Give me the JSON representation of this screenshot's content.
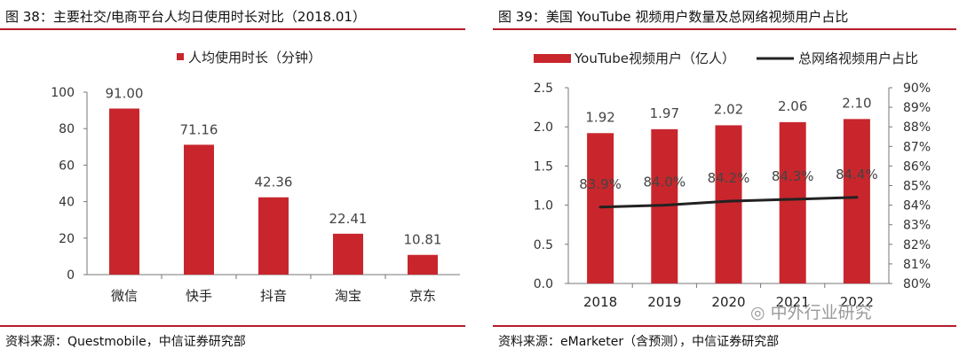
{
  "colors": {
    "bar": "#c8262c",
    "line": "#222222",
    "rule": "#b51d2a"
  },
  "left": {
    "title": "图 38：主要社交/电商平台人均日使用时长对比（2018.01）",
    "source": "资料来源：Questmobile，中信证券研究部",
    "chart_data": {
      "type": "bar",
      "categories": [
        "微信",
        "快手",
        "抖音",
        "淘宝",
        "京东"
      ],
      "series": [
        {
          "name": "人均使用时长（分钟）",
          "values": [
            91.0,
            71.16,
            42.36,
            22.41,
            10.81
          ]
        }
      ],
      "value_labels": [
        "91.00",
        "71.16",
        "42.36",
        "22.41",
        "10.81"
      ],
      "yticks": [
        "0",
        "20",
        "40",
        "60",
        "80",
        "100"
      ],
      "ylim": [
        0,
        100
      ],
      "legend": "top-center"
    }
  },
  "right": {
    "title": "图 39：美国 YouTube 视频用户数量及总网络视频用户占比",
    "source": "资料来源：eMarketer（含预测），中信证券研究部",
    "chart_data": {
      "type": "bar+line",
      "categories": [
        "2018",
        "2019",
        "2020",
        "2021",
        "2022"
      ],
      "series": [
        {
          "name": "YouTube视频用户（亿人）",
          "type": "bar",
          "axis": "left",
          "values": [
            1.92,
            1.97,
            2.02,
            2.06,
            2.1
          ],
          "labels": [
            "1.92",
            "1.97",
            "2.02",
            "2.06",
            "2.10"
          ]
        },
        {
          "name": "总网络视频用户占比",
          "type": "line",
          "axis": "right",
          "values": [
            83.9,
            84.0,
            84.2,
            84.3,
            84.4
          ],
          "labels": [
            "83.9%",
            "84.0%",
            "84.2%",
            "84.3%",
            "84.4%"
          ]
        }
      ],
      "yticks_left": [
        "0.0",
        "0.5",
        "1.0",
        "1.5",
        "2.0",
        "2.5"
      ],
      "ylim_left": [
        0,
        2.5
      ],
      "yticks_right": [
        "80%",
        "81%",
        "82%",
        "83%",
        "84%",
        "85%",
        "86%",
        "87%",
        "88%",
        "89%",
        "90%"
      ],
      "ylim_right": [
        80,
        90
      ],
      "legend": "top-center"
    }
  },
  "watermark": "中外行业研究"
}
